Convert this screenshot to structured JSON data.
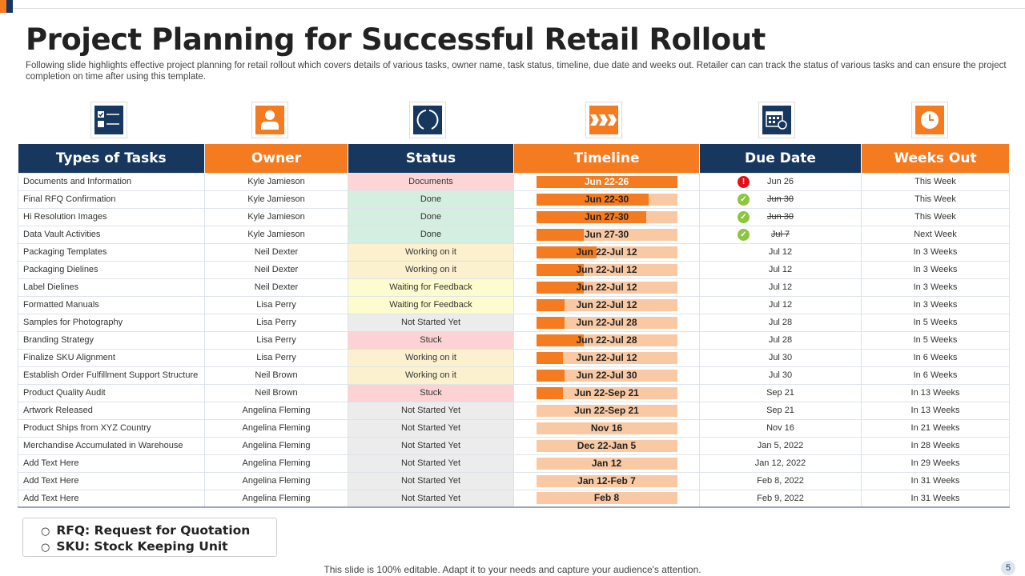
{
  "title": "Project Planning for Successful Retail Rollout",
  "description": "Following slide highlights effective project planning for retail rollout which covers details of various tasks, owner name, task status, timeline, due date and weeks out. Retailer can can track the status of various tasks and can ensure the project completion on time after using this template.",
  "colors": {
    "navy": "#17375e",
    "orange": "#f47b20",
    "bar_light": "#f9c9a3"
  },
  "columns": [
    {
      "label": "Types of Tasks",
      "icon": "checklist-icon"
    },
    {
      "label": "Owner",
      "icon": "user-icon"
    },
    {
      "label": "Status",
      "icon": "progress-circle-icon"
    },
    {
      "label": "Timeline",
      "icon": "chevrons-right-icon"
    },
    {
      "label": "Due Date",
      "icon": "calendar-icon"
    },
    {
      "label": "Weeks Out",
      "icon": "clock-icon"
    }
  ],
  "status_colors": {
    "Documents": "#fcd6d6",
    "Done": "#d4efdf",
    "Working on it": "#fcf1cf",
    "Waiting for Feedback": "#fdfccf",
    "Not Started Yet": "#ececec",
    "Stuck": "#fcd2d2"
  },
  "rows": [
    {
      "task": "Documents and Information",
      "owner": "Kyle Jamieson",
      "status": "Documents",
      "timeline": "Jun 22-26",
      "progress": 1.0,
      "due": "Jun 26",
      "due_state": "alert",
      "weeks": "This Week"
    },
    {
      "task": "Final RFQ  Confirmation",
      "owner": "Kyle Jamieson",
      "status": "Done",
      "timeline": "Jun 22-30",
      "progress": 0.8,
      "due": "Jun 30",
      "due_state": "done",
      "weeks": "This Week"
    },
    {
      "task": "Hi Resolution Images",
      "owner": "Kyle Jamieson",
      "status": "Done",
      "timeline": "Jun 27-30",
      "progress": 0.78,
      "due": "Jun 30",
      "due_state": "done",
      "weeks": "This Week"
    },
    {
      "task": "Data Vault Activities",
      "owner": "Kyle Jamieson",
      "status": "Done",
      "timeline": "Jun 27-30",
      "progress": 0.34,
      "due": "Jul 7",
      "due_state": "done",
      "weeks": "Next Week"
    },
    {
      "task": "Packaging Templates",
      "owner": "Neil Dexter",
      "status": "Working on it",
      "timeline": "Jun 22-Jul 12",
      "progress": 0.43,
      "due": "Jul 12",
      "due_state": "",
      "weeks": "In 3 Weeks"
    },
    {
      "task": "Packaging Dielines",
      "owner": "Neil Dexter",
      "status": "Working on it",
      "timeline": "Jun 22-Jul 12",
      "progress": 0.34,
      "due": "Jul 12",
      "due_state": "",
      "weeks": "In 3 Weeks"
    },
    {
      "task": "Label Dielines",
      "owner": "Neil Dexter",
      "status": "Waiting for Feedback",
      "timeline": "Jun 22-Jul 12",
      "progress": 0.34,
      "due": "Jul 12",
      "due_state": "",
      "weeks": "In 3 Weeks"
    },
    {
      "task": "Formatted Manuals",
      "owner": "Lisa Perry",
      "status": "Waiting for Feedback",
      "timeline": "Jun 22-Jul 12",
      "progress": 0.2,
      "due": "Jul 12",
      "due_state": "",
      "weeks": "In 3 Weeks"
    },
    {
      "task": "Samples  for Photography",
      "owner": "Lisa Perry",
      "status": "Not Started Yet",
      "timeline": "Jun 22-Jul 28",
      "progress": 0.2,
      "due": "Jul 28",
      "due_state": "",
      "weeks": "In 5 Weeks"
    },
    {
      "task": "Branding Strategy",
      "owner": "Lisa Perry",
      "status": "Stuck",
      "timeline": "Jun 22-Jul 28",
      "progress": 0.34,
      "due": "Jul 28",
      "due_state": "",
      "weeks": "In 5 Weeks"
    },
    {
      "task": "Finalize SKU Alignment",
      "owner": "Lisa Perry",
      "status": "Working on it",
      "timeline": "Jun 22-Jul 12",
      "progress": 0.19,
      "due": "Jul 30",
      "due_state": "",
      "weeks": "In 6 Weeks"
    },
    {
      "task": "Establish Order Fulfillment Support Structure",
      "owner": "Neil Brown",
      "status": "Working on it",
      "timeline": "Jun 22-Jul 30",
      "progress": 0.2,
      "due": "Jul 30",
      "due_state": "",
      "weeks": "In 6 Weeks"
    },
    {
      "task": "Product Quality Audit",
      "owner": "Neil Brown",
      "status": "Stuck",
      "timeline": "Jun 22-Sep 21",
      "progress": 0.19,
      "due": "Sep 21",
      "due_state": "",
      "weeks": "In 13 Weeks"
    },
    {
      "task": "Artwork Released",
      "owner": "Angelina Fleming",
      "status": "Not Started Yet",
      "timeline": "Jun 22-Sep 21",
      "progress": 0,
      "due": "Sep 21",
      "due_state": "",
      "weeks": "In 13 Weeks"
    },
    {
      "task": "Product Ships from XYZ Country",
      "owner": "Angelina Fleming",
      "status": "Not Started Yet",
      "timeline": "Nov  16",
      "progress": 0,
      "due": "Nov 16",
      "due_state": "",
      "weeks": "In 21 Weeks"
    },
    {
      "task": "Merchandise Accumulated in  Warehouse",
      "owner": "Angelina Fleming",
      "status": "Not Started Yet",
      "timeline": "Dec 22-Jan 5",
      "progress": 0,
      "due": "Jan 5, 2022",
      "due_state": "",
      "weeks": "In 28 Weeks"
    },
    {
      "task": "Add Text Here",
      "owner": "Angelina Fleming",
      "status": "Not Started Yet",
      "timeline": "Jan 12",
      "progress": 0,
      "due": "Jan 12, 2022",
      "due_state": "",
      "weeks": "In 29 Weeks"
    },
    {
      "task": "Add Text Here",
      "owner": "Angelina Fleming",
      "status": "Not Started Yet",
      "timeline": "Jan 12-Feb 7",
      "progress": 0,
      "due": "Feb 8, 2022",
      "due_state": "",
      "weeks": "In 31 Weeks"
    },
    {
      "task": "Add Text Here",
      "owner": "Angelina Fleming",
      "status": "Not Started Yet",
      "timeline": "Feb  8",
      "progress": 0,
      "due": "Feb 9, 2022",
      "due_state": "",
      "weeks": "In 31 Weeks"
    }
  ],
  "legend": [
    "RFQ: Request for Quotation",
    "SKU: Stock  Keeping Unit"
  ],
  "footer": "This slide is 100% editable. Adapt it to your needs and capture your audience's attention.",
  "page_number": "5"
}
